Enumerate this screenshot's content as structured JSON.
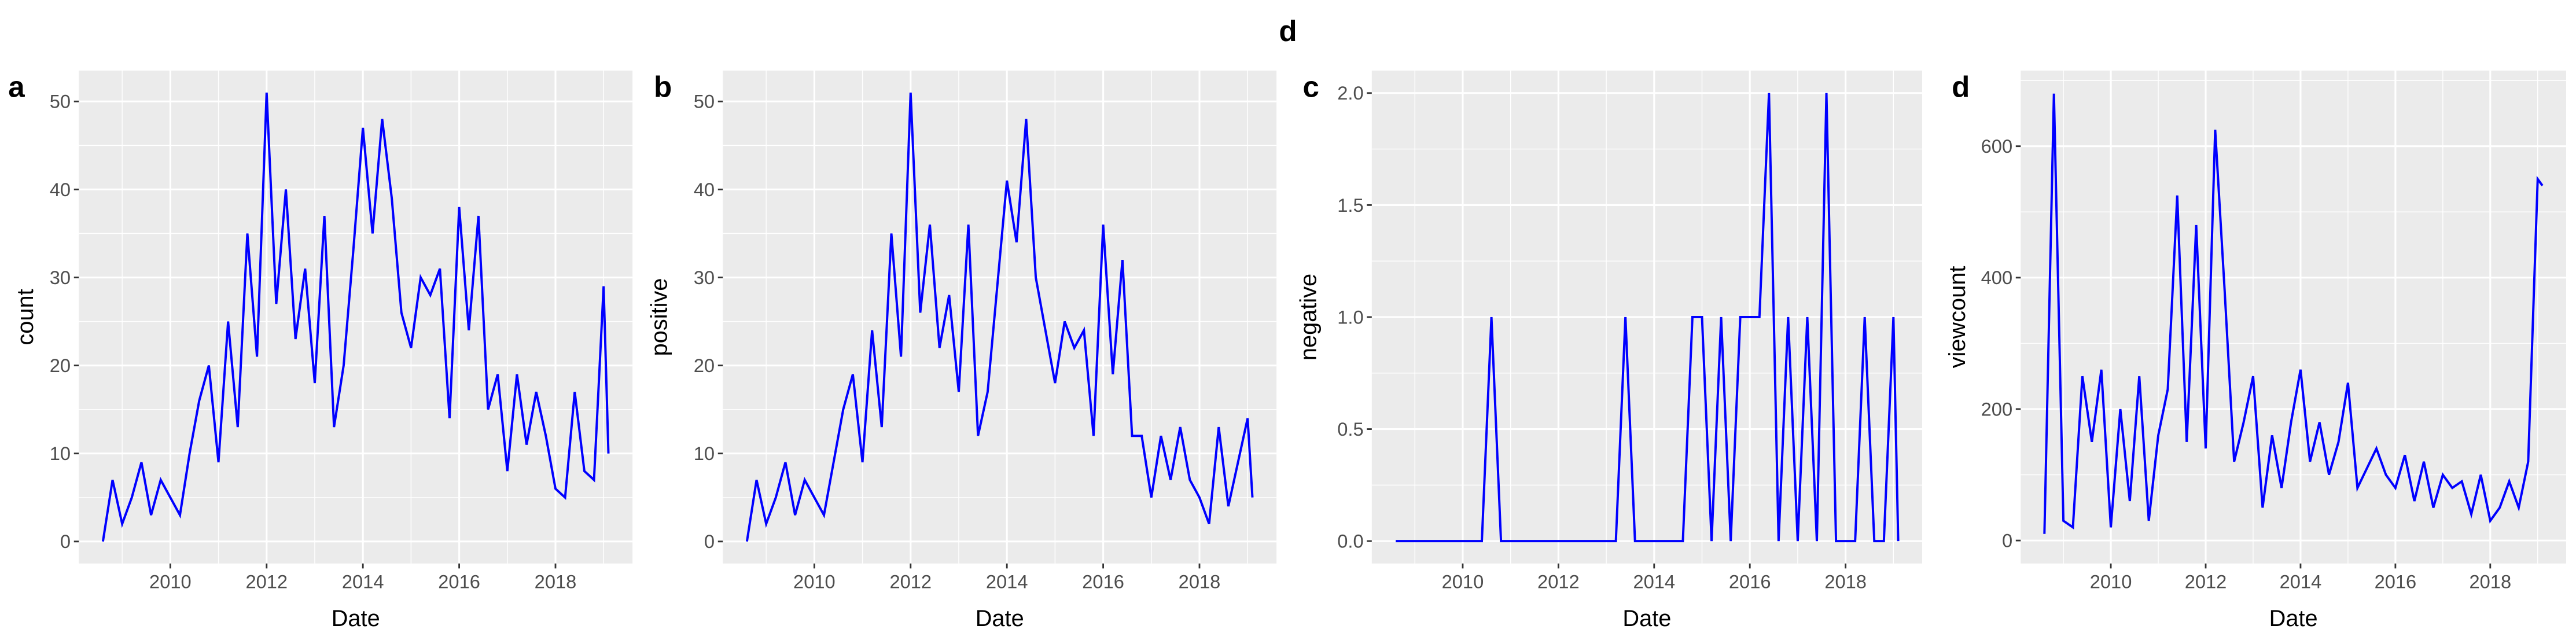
{
  "title": "d",
  "chart_data": [
    {
      "type": "line",
      "panel_label": "a",
      "xlabel": "Date",
      "ylabel": "count",
      "color": "#0000ff",
      "grid": true,
      "x": [
        2008.6,
        2008.8,
        2009.0,
        2009.2,
        2009.4,
        2009.6,
        2009.8,
        2010.0,
        2010.2,
        2010.4,
        2010.6,
        2010.8,
        2011.0,
        2011.2,
        2011.4,
        2011.6,
        2011.8,
        2012.0,
        2012.2,
        2012.4,
        2012.6,
        2012.8,
        2013.0,
        2013.2,
        2013.4,
        2013.6,
        2013.8,
        2014.0,
        2014.2,
        2014.4,
        2014.6,
        2014.8,
        2015.0,
        2015.2,
        2015.4,
        2015.6,
        2015.8,
        2016.0,
        2016.2,
        2016.4,
        2016.6,
        2016.8,
        2017.0,
        2017.2,
        2017.4,
        2017.6,
        2017.8,
        2018.0,
        2018.2,
        2018.4,
        2018.6,
        2018.8,
        2019.0,
        2019.1
      ],
      "values": [
        0,
        7,
        2,
        5,
        9,
        3,
        7,
        5,
        3,
        10,
        16,
        20,
        9,
        25,
        13,
        35,
        21,
        51,
        27,
        40,
        23,
        31,
        18,
        37,
        13,
        20,
        33,
        47,
        35,
        48,
        39,
        26,
        22,
        30,
        28,
        31,
        14,
        38,
        24,
        37,
        15,
        19,
        8,
        19,
        11,
        17,
        12,
        6,
        5,
        17,
        8,
        7,
        29,
        10
      ],
      "xlim": [
        2008.1,
        2019.6
      ],
      "xticks": [
        2010,
        2012,
        2014,
        2016,
        2018
      ],
      "ylim": [
        -2.5,
        53.5
      ],
      "yticks": [
        0,
        10,
        20,
        30,
        40,
        50
      ]
    },
    {
      "type": "line",
      "panel_label": "b",
      "xlabel": "Date",
      "ylabel": "positive",
      "color": "#0000ff",
      "grid": true,
      "x": [
        2008.6,
        2008.8,
        2009.0,
        2009.2,
        2009.4,
        2009.6,
        2009.8,
        2010.0,
        2010.2,
        2010.4,
        2010.6,
        2010.8,
        2011.0,
        2011.2,
        2011.4,
        2011.6,
        2011.8,
        2012.0,
        2012.2,
        2012.4,
        2012.6,
        2012.8,
        2013.0,
        2013.2,
        2013.4,
        2013.6,
        2013.8,
        2014.0,
        2014.2,
        2014.4,
        2014.6,
        2014.8,
        2015.0,
        2015.2,
        2015.4,
        2015.6,
        2015.8,
        2016.0,
        2016.2,
        2016.4,
        2016.6,
        2016.8,
        2017.0,
        2017.2,
        2017.4,
        2017.6,
        2017.8,
        2018.0,
        2018.2,
        2018.4,
        2018.6,
        2018.8,
        2019.0,
        2019.1
      ],
      "values": [
        0,
        7,
        2,
        5,
        9,
        3,
        7,
        5,
        3,
        9,
        15,
        19,
        9,
        24,
        13,
        35,
        21,
        51,
        26,
        36,
        22,
        28,
        17,
        36,
        12,
        17,
        29,
        41,
        34,
        48,
        30,
        24,
        18,
        25,
        22,
        24,
        12,
        36,
        19,
        32,
        12,
        12,
        5,
        12,
        7,
        13,
        7,
        5,
        2,
        13,
        4,
        9,
        14,
        5
      ],
      "xlim": [
        2008.1,
        2019.6
      ],
      "xticks": [
        2010,
        2012,
        2014,
        2016,
        2018
      ],
      "ylim": [
        -2.5,
        53.5
      ],
      "yticks": [
        0,
        10,
        20,
        30,
        40,
        50
      ]
    },
    {
      "type": "line",
      "panel_label": "c",
      "xlabel": "Date",
      "ylabel": "negative",
      "color": "#0000ff",
      "grid": true,
      "x": [
        2008.6,
        2008.8,
        2009.0,
        2009.2,
        2009.4,
        2009.6,
        2009.8,
        2010.0,
        2010.2,
        2010.4,
        2010.6,
        2010.8,
        2011.0,
        2011.2,
        2011.4,
        2011.6,
        2011.8,
        2012.0,
        2012.2,
        2012.4,
        2012.6,
        2012.8,
        2013.0,
        2013.2,
        2013.4,
        2013.6,
        2013.8,
        2014.0,
        2014.2,
        2014.4,
        2014.6,
        2014.8,
        2015.0,
        2015.2,
        2015.4,
        2015.6,
        2015.8,
        2016.0,
        2016.2,
        2016.4,
        2016.6,
        2016.8,
        2017.0,
        2017.2,
        2017.4,
        2017.6,
        2017.8,
        2018.0,
        2018.2,
        2018.4,
        2018.6,
        2018.8,
        2019.0,
        2019.1
      ],
      "values": [
        0,
        0,
        0,
        0,
        0,
        0,
        0,
        0,
        0,
        0,
        1,
        0,
        0,
        0,
        0,
        0,
        0,
        0,
        0,
        0,
        0,
        0,
        0,
        0,
        1,
        0,
        0,
        0,
        0,
        0,
        0,
        1,
        1,
        0,
        1,
        0,
        1,
        1,
        1,
        2,
        0,
        1,
        0,
        1,
        0,
        2,
        0,
        0,
        0,
        1,
        0,
        0,
        1,
        0
      ],
      "xlim": [
        2008.1,
        2019.6
      ],
      "xticks": [
        2010,
        2012,
        2014,
        2016,
        2018
      ],
      "ylim": [
        -0.1,
        2.1
      ],
      "yticks": [
        {
          "value": 0,
          "label": "0.0"
        },
        0.5,
        {
          "value": 1,
          "label": "1.0"
        },
        1.5,
        {
          "value": 2,
          "label": "2.0"
        }
      ]
    },
    {
      "type": "line",
      "panel_label": "d",
      "xlabel": "Date",
      "ylabel": "viewcount",
      "color": "#0000ff",
      "grid": true,
      "x": [
        2008.6,
        2008.8,
        2009.0,
        2009.2,
        2009.4,
        2009.6,
        2009.8,
        2010.0,
        2010.2,
        2010.4,
        2010.6,
        2010.8,
        2011.0,
        2011.2,
        2011.4,
        2011.6,
        2011.8,
        2012.0,
        2012.2,
        2012.4,
        2012.6,
        2012.8,
        2013.0,
        2013.2,
        2013.4,
        2013.6,
        2013.8,
        2014.0,
        2014.2,
        2014.4,
        2014.6,
        2014.8,
        2015.0,
        2015.2,
        2015.4,
        2015.6,
        2015.8,
        2016.0,
        2016.2,
        2016.4,
        2016.6,
        2016.8,
        2017.0,
        2017.2,
        2017.4,
        2017.6,
        2017.8,
        2018.0,
        2018.2,
        2018.4,
        2018.6,
        2018.8,
        2019.0,
        2019.1
      ],
      "values": [
        10,
        680,
        30,
        20,
        250,
        150,
        260,
        20,
        200,
        60,
        250,
        30,
        160,
        230,
        525,
        150,
        480,
        140,
        625,
        380,
        120,
        180,
        250,
        50,
        160,
        80,
        180,
        260,
        120,
        180,
        100,
        150,
        240,
        80,
        110,
        140,
        100,
        80,
        130,
        60,
        120,
        50,
        100,
        80,
        90,
        40,
        100,
        30,
        50,
        90,
        50,
        120,
        550,
        540
      ],
      "xlim": [
        2008.1,
        2019.6
      ],
      "xticks": [
        2010,
        2012,
        2014,
        2016,
        2018
      ],
      "ylim": [
        -35,
        715
      ],
      "yticks": [
        0,
        200,
        400,
        600
      ]
    }
  ]
}
